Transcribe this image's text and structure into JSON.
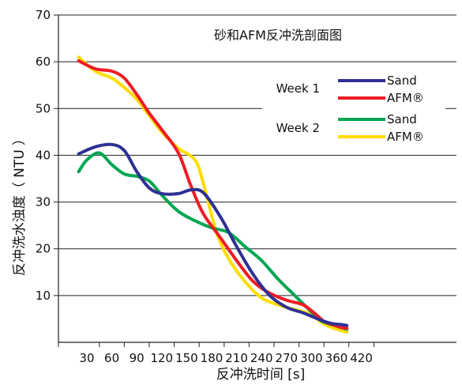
{
  "chart_data": {
    "type": "line",
    "title": "砂和AFM反冲洗剖面图",
    "xlabel": "反冲洗时间 [s]",
    "ylabel": "反冲洗水浊度（ NTU ）",
    "xlim": [
      0,
      425
    ],
    "ylim": [
      0,
      70
    ],
    "x_ticks": [
      30,
      60,
      90,
      120,
      150,
      180,
      210,
      240,
      270,
      300,
      360,
      420
    ],
    "y_ticks": [
      10,
      20,
      30,
      40,
      50,
      60,
      70
    ],
    "grid": "horizontal",
    "legend": {
      "placement": "top-right",
      "groups": [
        {
          "label": "Week 1",
          "entries": [
            0,
            1
          ]
        },
        {
          "label": "Week 2",
          "entries": [
            2,
            3
          ]
        }
      ]
    },
    "series": [
      {
        "name": "Sand",
        "color": "#2e3192",
        "x": [
          18,
          40,
          60,
          75,
          90,
          105,
          120,
          140,
          155,
          170,
          190,
          210,
          230,
          250,
          270,
          290,
          310,
          330,
          350,
          370,
          385
        ],
        "y": [
          40.3,
          41.8,
          42.3,
          41.0,
          36.5,
          33.0,
          31.8,
          31.8,
          32.6,
          32.0,
          27.0,
          20.5,
          14.5,
          10.0,
          7.5,
          6.3,
          5.2,
          4.5,
          4.0,
          3.8,
          3.6
        ]
      },
      {
        "name": "AFM®",
        "color": "#ed1c24",
        "x": [
          18,
          40,
          60,
          75,
          90,
          105,
          120,
          140,
          155,
          170,
          190,
          210,
          230,
          250,
          270,
          290,
          310,
          330,
          350,
          370,
          385
        ],
        "y": [
          60.2,
          58.5,
          58.0,
          56.5,
          53.0,
          49.0,
          45.5,
          40.5,
          33.5,
          27.5,
          22.5,
          17.5,
          13.0,
          10.5,
          9.0,
          8.0,
          6.0,
          4.5,
          3.8,
          3.2,
          3.0
        ]
      },
      {
        "name": "Sand",
        "color": "#00a651",
        "x": [
          18,
          30,
          45,
          60,
          75,
          90,
          105,
          120,
          140,
          160,
          180,
          200,
          220,
          240,
          260,
          280,
          300,
          320,
          340,
          360,
          385
        ],
        "y": [
          36.5,
          39.0,
          40.5,
          38.0,
          36.0,
          35.5,
          34.5,
          31.5,
          28.0,
          26.0,
          24.5,
          23.5,
          20.5,
          17.5,
          13.5,
          10.0,
          6.5,
          4.8,
          4.0,
          3.5,
          2.8
        ]
      },
      {
        "name": "AFM®",
        "color": "#ffdd00",
        "x": [
          18,
          40,
          60,
          75,
          90,
          105,
          120,
          140,
          160,
          170,
          185,
          200,
          220,
          240,
          260,
          280,
          300,
          320,
          340,
          360,
          385
        ],
        "y": [
          61.0,
          58.0,
          56.5,
          54.5,
          52.0,
          48.5,
          45.0,
          41.5,
          39.0,
          34.0,
          24.0,
          18.0,
          13.0,
          9.5,
          8.0,
          7.0,
          6.0,
          4.5,
          3.5,
          2.8,
          2.2
        ]
      }
    ]
  }
}
